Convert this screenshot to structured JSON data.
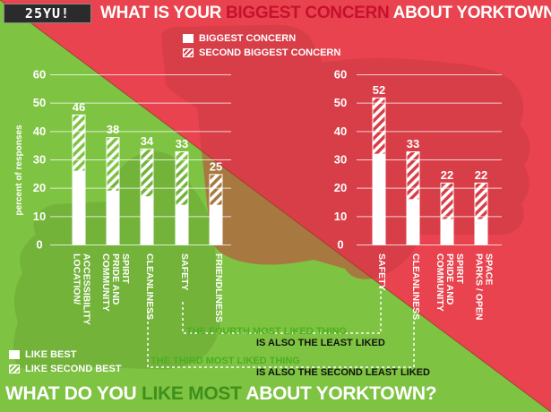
{
  "logo": "25YU!",
  "headline_top": {
    "pre": "WHAT IS YOUR ",
    "highlight": "BIGGEST CONCERN",
    "post": " ABOUT YORKTOWN?"
  },
  "headline_bottom": {
    "pre": "WHAT DO YOU ",
    "highlight": "LIKE MOST",
    "post": " ABOUT YORKTOWN?"
  },
  "legend_concern": {
    "solid": "BIGGEST CONCERN",
    "hatched": "SECOND BIGGEST CONCERN"
  },
  "legend_like": {
    "solid": "LIKE BEST",
    "hatched": "LIKE SECOND BEST"
  },
  "annotations": {
    "fourth_a": "THE FOURTH MOST LIKED THING",
    "fourth_b": "IS ALSO THE LEAST LIKED",
    "third_a": "THE THIRD MOST LIKED THING",
    "third_b": "IS ALSO THE SECOND LEAST LIKED"
  },
  "colors": {
    "green_bg": "#7fc342",
    "red_bg": "#e8434e",
    "red_accent": "#c8102e",
    "green_accent": "#3f8f1c",
    "bar": "#ffffff"
  },
  "chart_data": [
    {
      "type": "bar",
      "stacked": true,
      "ylabel": "percent of responses",
      "ylim": [
        0,
        60
      ],
      "yticks": [
        0,
        10,
        20,
        30,
        40,
        50,
        60
      ],
      "grid": true,
      "categories": [
        "LOCATION/ ACCESSIBILITY",
        "COMMUNITY PRIDE AND SPIRIT",
        "CLEANLINESS",
        "SAFETY",
        "FRIENDLINESS"
      ],
      "series": [
        {
          "name": "LIKE BEST",
          "values": [
            26,
            19,
            17,
            14,
            14
          ]
        },
        {
          "name": "LIKE SECOND BEST",
          "values": [
            20,
            19,
            17,
            19,
            11
          ]
        }
      ],
      "totals": [
        46,
        38,
        34,
        33,
        25
      ]
    },
    {
      "type": "bar",
      "stacked": true,
      "ylim": [
        0,
        60
      ],
      "yticks": [
        0,
        10,
        20,
        30,
        40,
        50,
        60
      ],
      "grid": true,
      "categories": [
        "SAFETY",
        "CLEANLINESS",
        "COMMUNITY PRIDE AND SPIRIT",
        "PARKS / OPEN SPACE"
      ],
      "series": [
        {
          "name": "BIGGEST CONCERN",
          "values": [
            32,
            16,
            9,
            9
          ]
        },
        {
          "name": "SECOND BIGGEST CONCERN",
          "values": [
            20,
            17,
            13,
            13
          ]
        }
      ],
      "totals": [
        52,
        33,
        22,
        22
      ]
    }
  ]
}
